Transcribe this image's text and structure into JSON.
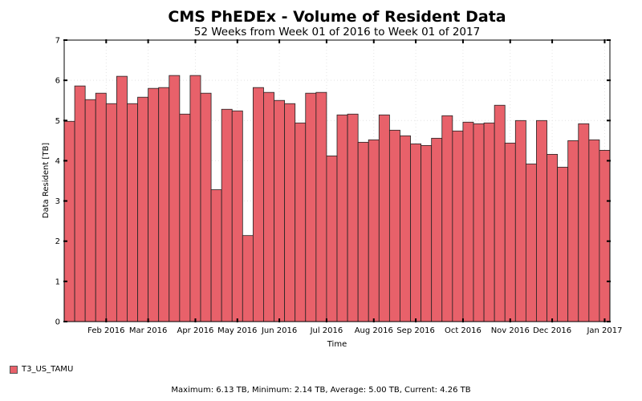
{
  "chart_data": {
    "type": "bar",
    "title": "CMS PhEDEx - Volume of Resident Data",
    "subtitle": "52 Weeks from Week 01 of 2016 to Week 01 of 2017",
    "xlabel": "Time",
    "ylabel": "Data Resident [TB]",
    "ylim": [
      0,
      7
    ],
    "yticks": [
      0,
      1,
      2,
      3,
      4,
      5,
      6,
      7
    ],
    "grid": true,
    "x_tick_labels": [
      "Feb 2016",
      "Mar 2016",
      "Apr 2016",
      "May 2016",
      "Jun 2016",
      "Jul 2016",
      "Aug 2016",
      "Sep 2016",
      "Oct 2016",
      "Nov 2016",
      "Dec 2016",
      "Jan 2017"
    ],
    "x_tick_weeks": [
      4,
      8,
      12.5,
      16.5,
      20.5,
      25,
      29.5,
      33.5,
      38,
      42.5,
      46.5,
      51.5
    ],
    "bar_color": "#e8616a",
    "series": [
      {
        "name": "T3_US_TAMU",
        "values": [
          4.98,
          5.86,
          5.52,
          5.68,
          5.42,
          6.1,
          5.42,
          5.58,
          5.8,
          5.82,
          6.12,
          5.16,
          6.12,
          5.68,
          3.28,
          5.28,
          5.24,
          2.14,
          5.82,
          5.7,
          5.5,
          5.42,
          4.94,
          5.68,
          5.7,
          4.12,
          5.14,
          5.16,
          4.46,
          4.52,
          5.14,
          4.76,
          4.62,
          4.42,
          4.38,
          4.56,
          5.12,
          4.74,
          4.96,
          4.92,
          4.94,
          5.38,
          4.44,
          5.0,
          3.92,
          5.0,
          4.16,
          3.84,
          4.5,
          4.92,
          4.52,
          4.26
        ]
      }
    ]
  },
  "legend": {
    "label": "T3_US_TAMU"
  },
  "footer": {
    "text": "Maximum: 6.13 TB, Minimum: 2.14 TB, Average: 5.00 TB, Current: 4.26 TB"
  }
}
